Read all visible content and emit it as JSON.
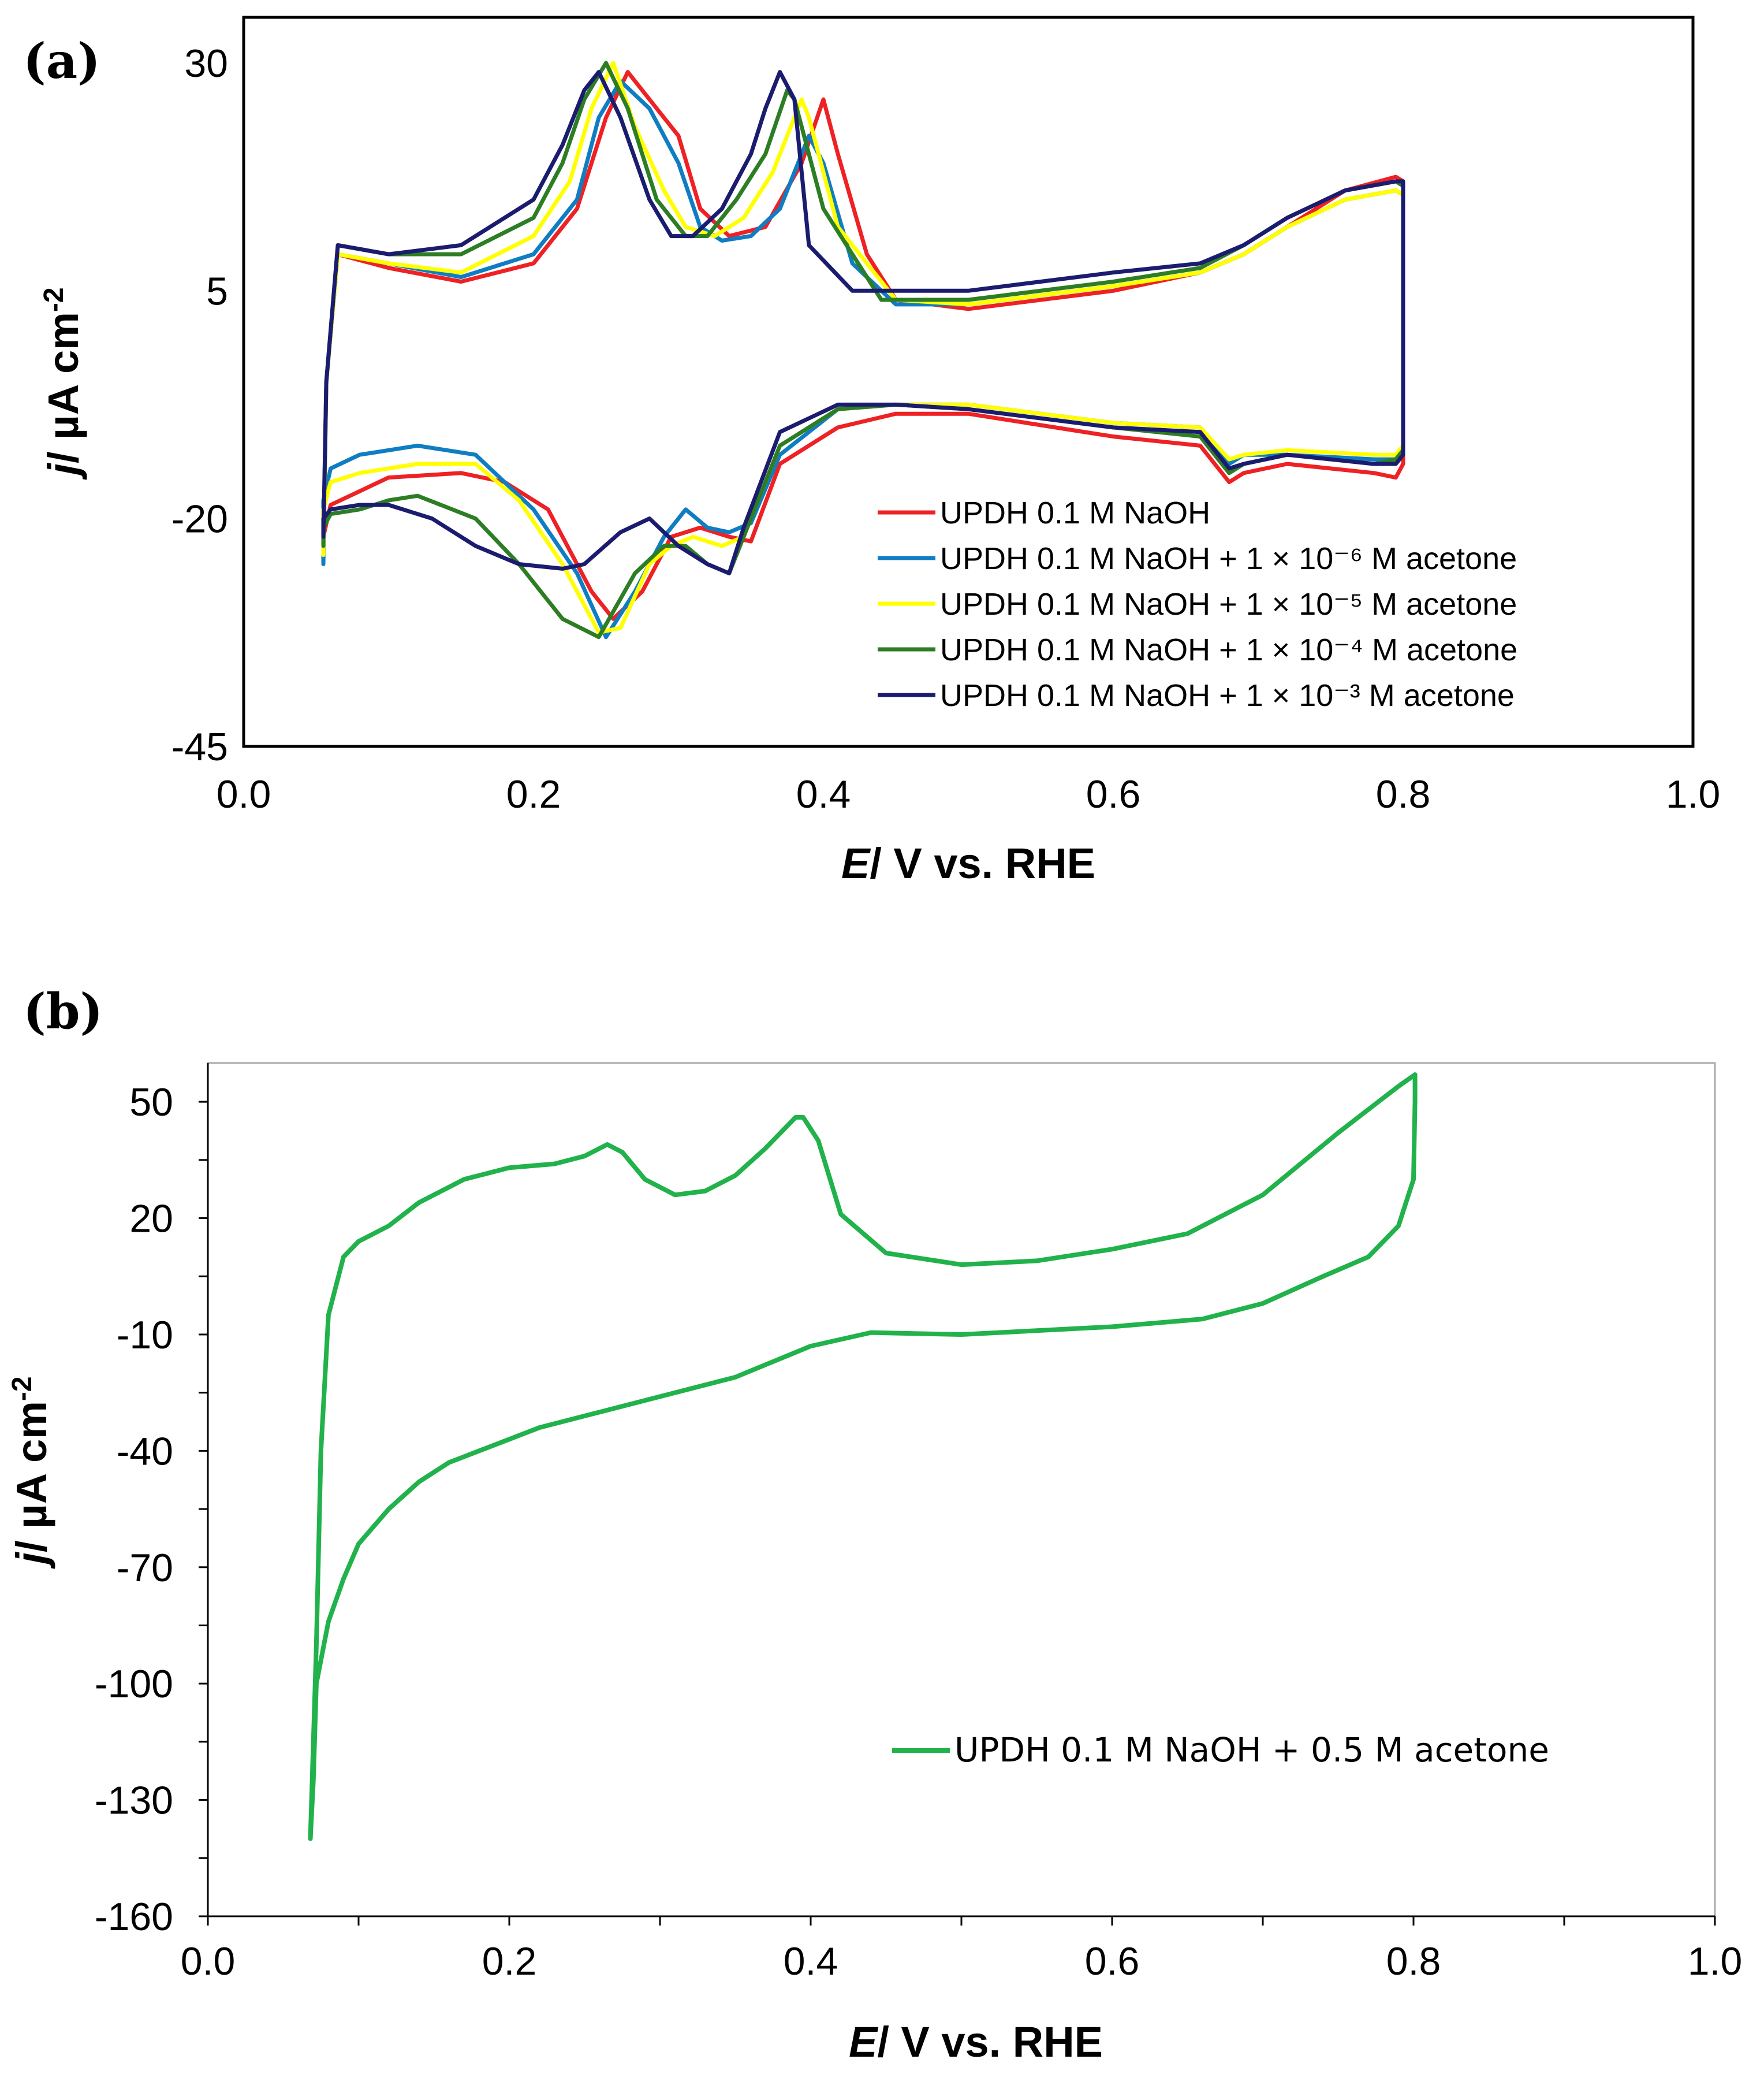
{
  "chart_data": [
    {
      "panel_label": "(a)",
      "type": "line",
      "title": "",
      "xlabel_italic": "E",
      "xlabel_rest": "/ V  vs. RHE",
      "ylabel_italic": "j",
      "ylabel_rest": "/ µA cm",
      "ylabel_sup": "-2",
      "xlim": [
        0.0,
        1.0
      ],
      "ylim": [
        -45,
        35
      ],
      "xticks": [
        0.0,
        0.2,
        0.4,
        0.6,
        0.8,
        1.0
      ],
      "xtick_labels": [
        "0.0",
        "0.2",
        "0.4",
        "0.6",
        "0.8",
        "1.0"
      ],
      "yticks": [
        30,
        5,
        -20,
        -45
      ],
      "ytick_labels": [
        "30",
        "5",
        "-20",
        "-45"
      ],
      "legend_position": "lower-right",
      "series": [
        {
          "name": "UPDH 0.1 M NaOH",
          "color": "#ee2124",
          "x": [
            0.055,
            0.057,
            0.065,
            0.1,
            0.15,
            0.2,
            0.23,
            0.25,
            0.265,
            0.285,
            0.3,
            0.315,
            0.335,
            0.36,
            0.385,
            0.4,
            0.41,
            0.43,
            0.45,
            0.5,
            0.6,
            0.66,
            0.69,
            0.72,
            0.76,
            0.795,
            0.8,
            0.8,
            0.795,
            0.78,
            0.72,
            0.69,
            0.68,
            0.66,
            0.6,
            0.5,
            0.45,
            0.41,
            0.37,
            0.35,
            0.335,
            0.315,
            0.295,
            0.275,
            0.255,
            0.24,
            0.21,
            0.18,
            0.15,
            0.1,
            0.06,
            0.055,
            0.055
          ],
          "y": [
            -24,
            -5,
            9,
            7.5,
            6,
            8,
            14,
            24,
            29,
            25,
            22,
            14,
            11,
            12,
            19,
            26,
            20,
            9,
            4,
            3,
            5,
            7,
            9,
            12,
            16,
            17.5,
            17,
            -14,
            -15.5,
            -15,
            -14,
            -15,
            -16,
            -12,
            -11,
            -8.5,
            -8.5,
            -10,
            -14,
            -22.5,
            -22,
            -21,
            -22,
            -28,
            -31,
            -28,
            -19,
            -16,
            -15,
            -15.5,
            -18.5,
            -22,
            -24
          ]
        },
        {
          "name": "UPDH 0.1 M NaOH + 1 × 10⁻⁶ M acetone",
          "color": "#0f7dc2",
          "x": [
            0.055,
            0.057,
            0.065,
            0.1,
            0.15,
            0.2,
            0.23,
            0.245,
            0.26,
            0.28,
            0.3,
            0.315,
            0.33,
            0.35,
            0.37,
            0.39,
            0.4,
            0.42,
            0.45,
            0.5,
            0.6,
            0.66,
            0.69,
            0.72,
            0.76,
            0.795,
            0.8,
            0.8,
            0.795,
            0.78,
            0.72,
            0.69,
            0.68,
            0.66,
            0.6,
            0.5,
            0.45,
            0.41,
            0.37,
            0.35,
            0.335,
            0.32,
            0.305,
            0.29,
            0.27,
            0.25,
            0.23,
            0.2,
            0.16,
            0.12,
            0.08,
            0.06,
            0.055,
            0.055
          ],
          "y": [
            -25,
            -5,
            9,
            8,
            6.5,
            9,
            15,
            24,
            28,
            25,
            19,
            12,
            10.5,
            11,
            14,
            22,
            19,
            8,
            3.5,
            3.5,
            5.5,
            7,
            9,
            12,
            15,
            16,
            15.5,
            -12,
            -13.5,
            -13.5,
            -13,
            -13,
            -14,
            -10,
            -9.5,
            -7.5,
            -7.5,
            -8,
            -13,
            -20.5,
            -21.5,
            -21,
            -19,
            -22,
            -28,
            -33,
            -26,
            -19,
            -13,
            -12,
            -13,
            -14.5,
            -18,
            -25
          ]
        },
        {
          "name": "UPDH 0.1 M NaOH + 1 × 10⁻⁵ M acetone",
          "color": "#ffff00",
          "x": [
            0.055,
            0.057,
            0.065,
            0.1,
            0.15,
            0.2,
            0.225,
            0.24,
            0.255,
            0.27,
            0.29,
            0.305,
            0.325,
            0.345,
            0.365,
            0.385,
            0.39,
            0.41,
            0.45,
            0.5,
            0.6,
            0.66,
            0.69,
            0.72,
            0.76,
            0.795,
            0.8,
            0.8,
            0.795,
            0.78,
            0.72,
            0.69,
            0.68,
            0.66,
            0.6,
            0.5,
            0.45,
            0.41,
            0.37,
            0.345,
            0.33,
            0.31,
            0.295,
            0.28,
            0.26,
            0.245,
            0.22,
            0.19,
            0.16,
            0.12,
            0.08,
            0.06,
            0.055,
            0.055
          ],
          "y": [
            -24,
            -5,
            9,
            8,
            7,
            11,
            17,
            25,
            30,
            23,
            16,
            12,
            11,
            13,
            18,
            26,
            24,
            12,
            4,
            3.5,
            5.5,
            7,
            9,
            12,
            15,
            16,
            15.5,
            -12,
            -13,
            -13,
            -12.5,
            -13,
            -13.5,
            -10,
            -9.5,
            -7.5,
            -7.5,
            -8,
            -12,
            -22,
            -23,
            -22,
            -23,
            -25,
            -32,
            -32.5,
            -25,
            -18,
            -14,
            -14,
            -15,
            -16,
            -19,
            -24
          ]
        },
        {
          "name": "UPDH 0.1 M NaOH + 1 × 10⁻⁴ M acetone",
          "color": "#2d7d24",
          "x": [
            0.055,
            0.057,
            0.065,
            0.1,
            0.15,
            0.2,
            0.22,
            0.235,
            0.25,
            0.265,
            0.285,
            0.305,
            0.32,
            0.34,
            0.36,
            0.375,
            0.38,
            0.4,
            0.44,
            0.5,
            0.6,
            0.66,
            0.69,
            0.72,
            0.76,
            0.795,
            0.8,
            0.8,
            0.795,
            0.78,
            0.72,
            0.69,
            0.68,
            0.66,
            0.6,
            0.5,
            0.45,
            0.41,
            0.37,
            0.345,
            0.335,
            0.32,
            0.305,
            0.29,
            0.27,
            0.245,
            0.22,
            0.19,
            0.16,
            0.12,
            0.1,
            0.08,
            0.06,
            0.055,
            0.055
          ],
          "y": [
            -23,
            -5,
            10,
            9,
            9,
            13,
            19,
            26,
            30,
            25,
            15,
            11,
            11,
            15,
            20,
            27,
            26,
            14,
            4,
            4,
            6,
            7.5,
            10,
            13,
            16,
            17,
            16.5,
            -12.5,
            -13.5,
            -14,
            -13,
            -14,
            -15,
            -11,
            -10,
            -8,
            -7.5,
            -8,
            -12,
            -22,
            -26,
            -25,
            -23,
            -23,
            -26,
            -33,
            -31,
            -25,
            -20,
            -17.5,
            -18,
            -19,
            -19.5,
            -21,
            -23
          ]
        },
        {
          "name": "UPDH 0.1 M NaOH + 1 × 10⁻³ M acetone",
          "color": "#1b1b6f",
          "x": [
            0.055,
            0.057,
            0.065,
            0.1,
            0.15,
            0.2,
            0.22,
            0.235,
            0.245,
            0.26,
            0.28,
            0.295,
            0.31,
            0.33,
            0.35,
            0.36,
            0.37,
            0.38,
            0.39,
            0.42,
            0.45,
            0.5,
            0.6,
            0.66,
            0.69,
            0.72,
            0.76,
            0.795,
            0.8,
            0.8,
            0.795,
            0.78,
            0.72,
            0.69,
            0.68,
            0.66,
            0.6,
            0.5,
            0.45,
            0.41,
            0.37,
            0.345,
            0.335,
            0.32,
            0.3,
            0.28,
            0.26,
            0.235,
            0.22,
            0.19,
            0.16,
            0.13,
            0.1,
            0.08,
            0.06,
            0.055,
            0.055
          ],
          "y": [
            -22,
            -5,
            10,
            9,
            10,
            15,
            21,
            27,
            29,
            24,
            15,
            11,
            11,
            14,
            20,
            25,
            29,
            26,
            10,
            5,
            5,
            5,
            7,
            8,
            10,
            13,
            16,
            17,
            17,
            -13,
            -14,
            -14,
            -13,
            -14,
            -14.5,
            -10.5,
            -10,
            -8,
            -7.5,
            -7.5,
            -10.5,
            -21,
            -26,
            -25,
            -23,
            -20,
            -21.5,
            -25,
            -25.5,
            -25,
            -23,
            -20,
            -18.5,
            -18.5,
            -19,
            -20,
            -22
          ]
        }
      ]
    },
    {
      "panel_label": "(b)",
      "type": "line",
      "title": "",
      "xlabel_italic": "E",
      "xlabel_rest": "/ V  vs. RHE",
      "ylabel_italic": "j",
      "ylabel_rest": "/ µA cm",
      "ylabel_sup": "-2",
      "xlim": [
        0.0,
        1.0
      ],
      "ylim": [
        -160,
        60
      ],
      "xticks": [
        0.0,
        0.2,
        0.4,
        0.6,
        0.8,
        1.0
      ],
      "xtick_labels": [
        "0.0",
        "0.2",
        "0.4",
        "0.6",
        "0.8",
        "1.0"
      ],
      "yticks": [
        50,
        20,
        -10,
        -40,
        -70,
        -100,
        -130,
        -160
      ],
      "ytick_labels": [
        "50",
        "20",
        "-10",
        "-40",
        "-70",
        "-100",
        "-130",
        "-160"
      ],
      "legend_position": "lower-right",
      "series": [
        {
          "name": "UPDH 0.1 M NaOH + 0.5 M acetone",
          "color": "#21b24b",
          "x": [
            0.068,
            0.072,
            0.075,
            0.08,
            0.09,
            0.1,
            0.12,
            0.14,
            0.17,
            0.2,
            0.23,
            0.25,
            0.265,
            0.275,
            0.29,
            0.31,
            0.33,
            0.35,
            0.37,
            0.39,
            0.395,
            0.405,
            0.42,
            0.45,
            0.5,
            0.55,
            0.6,
            0.65,
            0.7,
            0.75,
            0.79,
            0.801,
            0.801,
            0.8,
            0.79,
            0.77,
            0.74,
            0.7,
            0.66,
            0.6,
            0.5,
            0.44,
            0.4,
            0.35,
            0.3,
            0.26,
            0.22,
            0.18,
            0.16,
            0.14,
            0.12,
            0.1,
            0.09,
            0.08,
            0.072,
            0.07,
            0.068
          ],
          "y": [
            -140,
            -90,
            -40,
            -5,
            10,
            14,
            18,
            24,
            30,
            33,
            34,
            36,
            39,
            37,
            30,
            26,
            27,
            31,
            38,
            46,
            46,
            40,
            21,
            11,
            8,
            9,
            12,
            16,
            26,
            42,
            54,
            57,
            50,
            30,
            18,
            10,
            5,
            -2,
            -6,
            -8,
            -10,
            -9.5,
            -13,
            -21,
            -26,
            -30,
            -34,
            -40,
            -43,
            -48,
            -55,
            -64,
            -73,
            -84,
            -100,
            -125,
            -140
          ]
        }
      ]
    }
  ]
}
